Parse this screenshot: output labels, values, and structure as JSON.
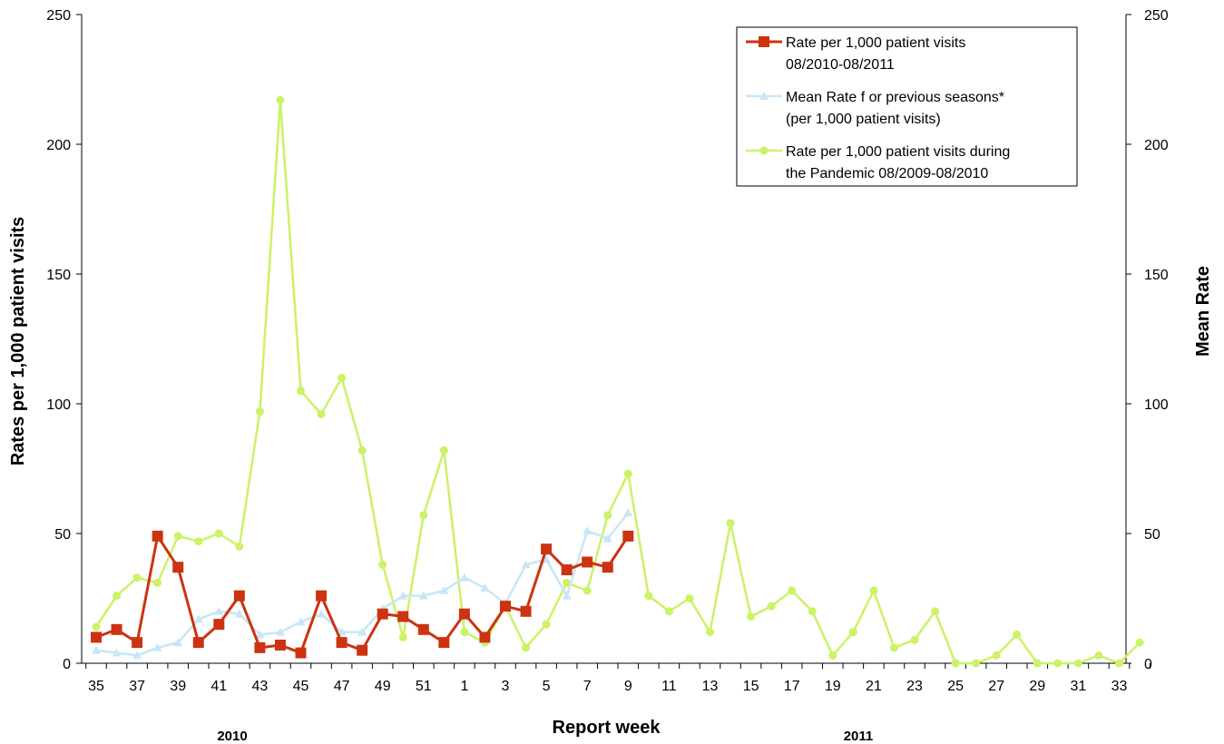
{
  "chart_data": {
    "type": "line",
    "xlabel": "Report week",
    "ylabel_left": "Rates per 1,000 patient visits",
    "ylabel_right": "Mean Rate",
    "ylim": [
      0,
      250
    ],
    "yticks": [
      "0",
      "50",
      "100",
      "150",
      "200",
      "250"
    ],
    "grid": false,
    "legend_position": "top-right",
    "year_labels": [
      "2010",
      "2011"
    ],
    "weeks": [
      35,
      36,
      37,
      38,
      39,
      40,
      41,
      42,
      43,
      44,
      45,
      46,
      47,
      48,
      49,
      50,
      51,
      52,
      1,
      2,
      3,
      4,
      5,
      6,
      7,
      8,
      9,
      10,
      11,
      12,
      13,
      14,
      15,
      16,
      17,
      18,
      19,
      20,
      21,
      22,
      23,
      24,
      25,
      26,
      27,
      28,
      29,
      30,
      31,
      32,
      33,
      34
    ],
    "x_tick_labels": [
      "35",
      "37",
      "39",
      "41",
      "43",
      "45",
      "47",
      "49",
      "51",
      "1",
      "3",
      "5",
      "7",
      "9",
      "11",
      "13",
      "15",
      "17",
      "19",
      "21",
      "23",
      "25",
      "27",
      "29",
      "31",
      "33"
    ],
    "series": [
      {
        "name": "Rate per 1,000  patient visits 08/2010-08/2011",
        "legend_lines": [
          "Rate per 1,000  patient visits",
          "08/2010-08/2011"
        ],
        "color": "#cc3311",
        "marker": "square",
        "values": [
          10,
          13,
          8,
          49,
          37,
          8,
          15,
          26,
          6,
          7,
          4,
          26,
          8,
          5,
          19,
          18,
          13,
          8,
          19,
          10,
          22,
          20,
          44,
          36,
          39,
          37,
          49
        ]
      },
      {
        "name": "Mean Rate  for previous seasons* (per 1,000 patient visits)",
        "legend_lines": [
          "Mean Rate  f or previous seasons*",
          "(per 1,000  patient visits)"
        ],
        "color": "#c8e6f6",
        "marker": "triangle",
        "values": [
          5,
          4,
          3,
          6,
          8,
          17,
          20,
          19,
          11,
          12,
          16,
          19,
          12,
          12,
          21,
          26,
          26,
          28,
          33,
          29,
          23,
          38,
          40,
          26,
          51,
          48,
          58
        ]
      },
      {
        "name": "Rate per 1,000  patient visits during the Pandemic 08/2009-08/2010",
        "legend_lines": [
          "Rate per 1,000  patient visits during",
          "the Pandemic   08/2009-08/2010"
        ],
        "color": "#ccf266",
        "marker": "circle",
        "values": [
          14,
          26,
          33,
          31,
          49,
          47,
          50,
          45,
          97,
          217,
          105,
          96,
          110,
          82,
          38,
          10,
          57,
          82,
          12,
          8,
          22,
          6,
          15,
          31,
          28,
          57,
          73,
          26,
          20,
          25,
          12,
          54,
          18,
          22,
          28,
          20,
          3,
          12,
          28,
          6,
          9,
          20,
          0,
          0,
          3,
          11,
          0,
          0,
          0,
          3,
          0,
          8
        ]
      }
    ]
  }
}
